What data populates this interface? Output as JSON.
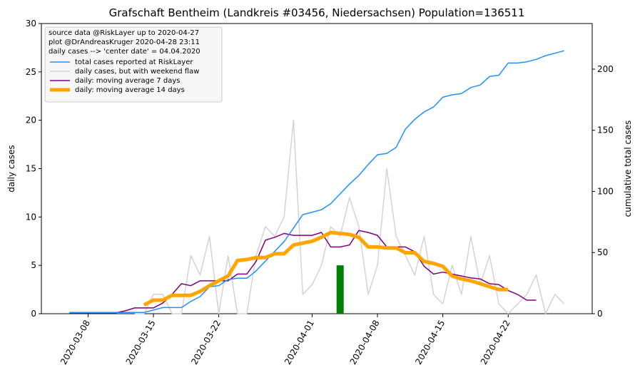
{
  "chart_data": {
    "type": "line",
    "title": "Grafschaft Bentheim (Landkreis #03456, Niedersachsen) Population=136511",
    "ylabel": "daily cases",
    "ylabel_color": "purple",
    "y2label": "cumulative total cases",
    "y2label_color": "#1e90ff",
    "legend_notes": [
      "source data @RiskLayer up to 2020-04-27",
      "plot @DrAndreasKruger 2020-04-28 23:11",
      "daily cases --> 'center date' = 04.04.2020"
    ],
    "legend": "upper left",
    "x": [
      "2020-03-06",
      "2020-03-07",
      "2020-03-08",
      "2020-03-09",
      "2020-03-10",
      "2020-03-11",
      "2020-03-12",
      "2020-03-13",
      "2020-03-14",
      "2020-03-15",
      "2020-03-16",
      "2020-03-17",
      "2020-03-18",
      "2020-03-19",
      "2020-03-20",
      "2020-03-21",
      "2020-03-22",
      "2020-03-23",
      "2020-03-24",
      "2020-03-25",
      "2020-03-26",
      "2020-03-27",
      "2020-03-28",
      "2020-03-29",
      "2020-03-30",
      "2020-03-31",
      "2020-04-01",
      "2020-04-02",
      "2020-04-03",
      "2020-04-04",
      "2020-04-05",
      "2020-04-06",
      "2020-04-07",
      "2020-04-08",
      "2020-04-09",
      "2020-04-10",
      "2020-04-11",
      "2020-04-12",
      "2020-04-13",
      "2020-04-14",
      "2020-04-15",
      "2020-04-16",
      "2020-04-17",
      "2020-04-18",
      "2020-04-19",
      "2020-04-20",
      "2020-04-21",
      "2020-04-22",
      "2020-04-23",
      "2020-04-24",
      "2020-04-25",
      "2020-04-26",
      "2020-04-27",
      "2020-04-28"
    ],
    "series": [
      {
        "name": "total cases reported at RiskLayer",
        "color": "#1e90ff",
        "width": 1.5,
        "axis": "y2",
        "values": [
          1,
          1,
          1,
          1,
          1,
          1,
          1,
          1,
          1,
          3,
          5,
          5,
          5,
          10,
          14,
          22,
          23,
          28,
          29,
          29,
          35,
          43,
          51,
          59,
          70,
          81,
          83,
          85,
          90,
          98,
          106,
          113,
          122,
          130,
          131,
          136,
          151,
          159,
          165,
          169,
          177,
          179,
          180,
          185,
          187,
          194,
          195,
          205,
          205,
          206,
          208,
          211,
          213,
          215
        ]
      },
      {
        "name": "daily cases, but with weekend flaw",
        "color": "#d3d3d3",
        "width": 1.5,
        "values": [
          null,
          null,
          null,
          null,
          null,
          null,
          null,
          0,
          0,
          2,
          2,
          0,
          0,
          6,
          4,
          8,
          0,
          6,
          0,
          0,
          6,
          9,
          8,
          10,
          20,
          2,
          3,
          5,
          9,
          8,
          12,
          9,
          2,
          5,
          15,
          8,
          6,
          4,
          8,
          2,
          1,
          5,
          2,
          8,
          3,
          6,
          1,
          0,
          1,
          2,
          4,
          0,
          2,
          1
        ]
      },
      {
        "name": "daily: moving average 7 days",
        "color": "purple",
        "width": 1.5,
        "values": [
          0.1,
          0.1,
          0.1,
          0.1,
          0.1,
          0.1,
          0.3,
          0.6,
          0.6,
          0.6,
          1.1,
          2,
          3.1,
          2.9,
          3.4,
          3.4,
          3.4,
          3.4,
          4.1,
          4.1,
          5.4,
          7.6,
          7.9,
          8.3,
          8.1,
          8.1,
          8.1,
          8.4,
          6.9,
          6.9,
          7.1,
          8.6,
          8.4,
          8.1,
          6.9,
          6.9,
          6.9,
          6.4,
          4.9,
          4.1,
          4.3,
          4.1,
          3.9,
          3.7,
          3.6,
          3.1,
          3.0,
          2.4,
          2.0,
          1.4,
          1.4,
          null,
          null,
          null
        ]
      },
      {
        "name": "daily: moving average 14 days",
        "color": "orange",
        "width": 5,
        "values": [
          null,
          null,
          null,
          null,
          null,
          null,
          null,
          null,
          0.9,
          1.4,
          1.4,
          1.9,
          1.9,
          1.9,
          2.3,
          2.9,
          3.4,
          3.9,
          5.5,
          5.6,
          5.8,
          5.8,
          6.2,
          6.2,
          7.1,
          7.3,
          7.5,
          7.9,
          8.4,
          8.3,
          8.2,
          7.9,
          6.9,
          6.9,
          6.8,
          6.8,
          6.3,
          6.3,
          5.4,
          5.2,
          4.9,
          3.9,
          3.6,
          3.4,
          3.1,
          2.8,
          2.5,
          2.5,
          null,
          null,
          null,
          null,
          null,
          null
        ]
      }
    ],
    "marker": {
      "x": "2020-04-04",
      "value": 5,
      "color": "green"
    },
    "xlim": [
      "2020-03-03",
      "2020-05-01"
    ],
    "xticks": [
      "2020-03-08",
      "2020-03-15",
      "2020-03-22",
      "2020-04-01",
      "2020-04-08",
      "2020-04-15",
      "2020-04-22"
    ],
    "ylim": [
      0,
      30
    ],
    "yticks": [
      0,
      5,
      10,
      15,
      20,
      25,
      30
    ],
    "y2lim": [
      0,
      237.3
    ],
    "y2ticks": [
      0,
      50,
      100,
      150,
      200
    ]
  }
}
